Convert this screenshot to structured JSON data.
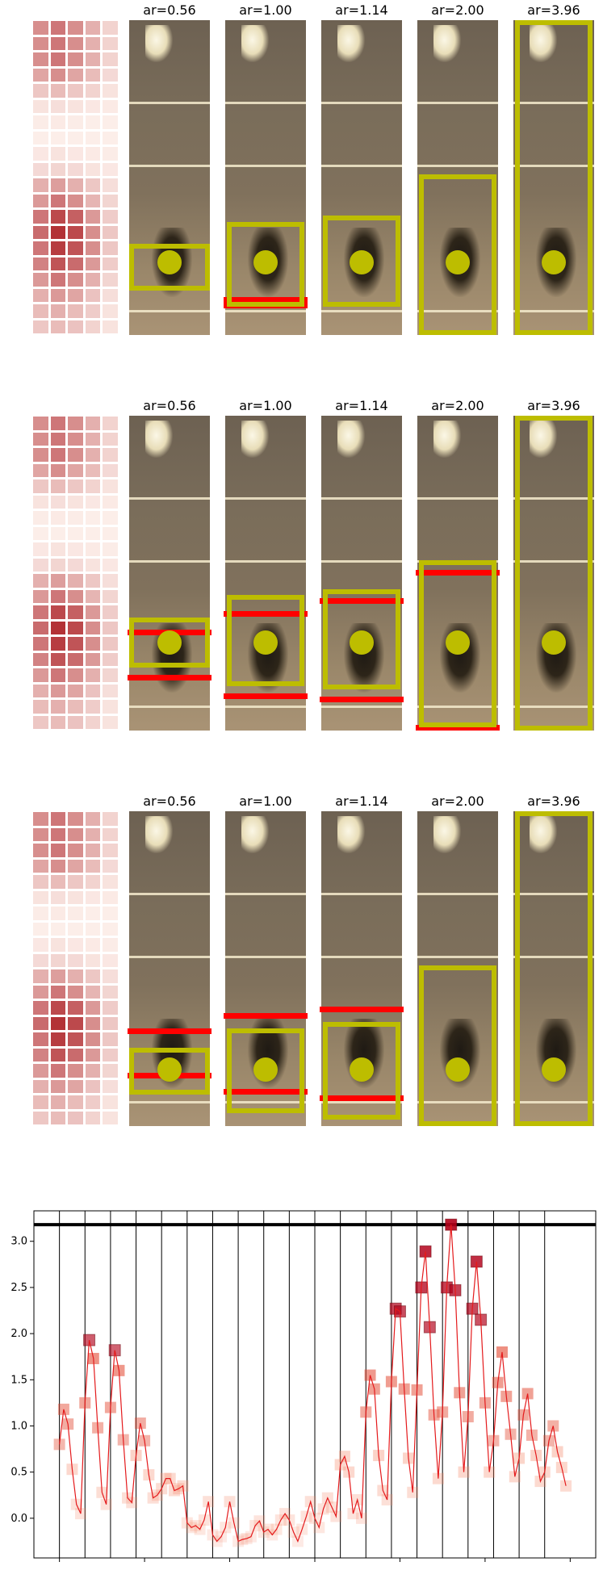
{
  "panels": [
    {
      "captions": [
        "ar=0.56",
        "ar=1.00",
        "ar=1.14",
        "ar=2.00",
        "ar=3.96"
      ],
      "heat": [
        [
          0.45,
          0.55,
          0.45,
          0.3,
          0.15
        ],
        [
          0.45,
          0.55,
          0.45,
          0.3,
          0.15
        ],
        [
          0.45,
          0.55,
          0.45,
          0.3,
          0.15
        ],
        [
          0.35,
          0.45,
          0.35,
          0.25,
          0.12
        ],
        [
          0.2,
          0.25,
          0.2,
          0.15,
          0.08
        ],
        [
          0.08,
          0.1,
          0.08,
          0.06,
          0.05
        ],
        [
          0.04,
          0.05,
          0.04,
          0.03,
          0.03
        ],
        [
          0.03,
          0.03,
          0.03,
          0.03,
          0.03
        ],
        [
          0.06,
          0.08,
          0.06,
          0.05,
          0.04
        ],
        [
          0.12,
          0.14,
          0.12,
          0.08,
          0.06
        ],
        [
          0.3,
          0.38,
          0.3,
          0.2,
          0.1
        ],
        [
          0.4,
          0.55,
          0.45,
          0.28,
          0.14
        ],
        [
          0.55,
          0.75,
          0.65,
          0.4,
          0.18
        ],
        [
          0.6,
          0.85,
          0.75,
          0.45,
          0.2
        ],
        [
          0.55,
          0.8,
          0.7,
          0.45,
          0.2
        ],
        [
          0.5,
          0.7,
          0.6,
          0.4,
          0.18
        ],
        [
          0.4,
          0.55,
          0.45,
          0.3,
          0.14
        ],
        [
          0.3,
          0.4,
          0.35,
          0.22,
          0.1
        ],
        [
          0.25,
          0.3,
          0.25,
          0.18,
          0.08
        ],
        [
          0.2,
          0.25,
          0.22,
          0.15,
          0.08
        ]
      ],
      "boxes": [
        {
          "yellow": [
            0,
            0.71,
            1,
            0.86
          ],
          "red": [],
          "dot": [
            0.5,
            0.77
          ]
        },
        {
          "yellow": [
            0.02,
            0.64,
            0.98,
            0.91
          ],
          "red": [
            0.88,
            0.9
          ],
          "dot": [
            0.5,
            0.77
          ]
        },
        {
          "yellow": [
            0.02,
            0.62,
            0.98,
            0.91
          ],
          "red": [],
          "dot": [
            0.5,
            0.77
          ]
        },
        {
          "yellow": [
            0.02,
            0.49,
            0.98,
            1.0
          ],
          "red": [],
          "dot": [
            0.5,
            0.77
          ]
        },
        {
          "yellow": [
            0.02,
            0.0,
            0.98,
            1.0
          ],
          "red": [],
          "dot": [
            0.5,
            0.77
          ]
        }
      ]
    },
    {
      "captions": [
        "ar=0.56",
        "ar=1.00",
        "ar=1.14",
        "ar=2.00",
        "ar=3.96"
      ],
      "heat": [
        [
          0.45,
          0.55,
          0.45,
          0.3,
          0.15
        ],
        [
          0.45,
          0.55,
          0.45,
          0.3,
          0.15
        ],
        [
          0.45,
          0.55,
          0.45,
          0.3,
          0.15
        ],
        [
          0.35,
          0.45,
          0.35,
          0.25,
          0.12
        ],
        [
          0.2,
          0.25,
          0.2,
          0.15,
          0.08
        ],
        [
          0.08,
          0.1,
          0.08,
          0.06,
          0.05
        ],
        [
          0.04,
          0.05,
          0.04,
          0.03,
          0.03
        ],
        [
          0.03,
          0.03,
          0.03,
          0.03,
          0.03
        ],
        [
          0.06,
          0.08,
          0.06,
          0.05,
          0.04
        ],
        [
          0.12,
          0.14,
          0.12,
          0.08,
          0.06
        ],
        [
          0.3,
          0.38,
          0.3,
          0.2,
          0.1
        ],
        [
          0.4,
          0.55,
          0.45,
          0.28,
          0.14
        ],
        [
          0.55,
          0.75,
          0.65,
          0.4,
          0.18
        ],
        [
          0.6,
          0.85,
          0.75,
          0.45,
          0.2
        ],
        [
          0.55,
          0.8,
          0.7,
          0.45,
          0.2
        ],
        [
          0.5,
          0.7,
          0.6,
          0.4,
          0.18
        ],
        [
          0.4,
          0.55,
          0.45,
          0.3,
          0.14
        ],
        [
          0.3,
          0.4,
          0.35,
          0.22,
          0.1
        ],
        [
          0.25,
          0.3,
          0.25,
          0.18,
          0.08
        ],
        [
          0.2,
          0.25,
          0.22,
          0.15,
          0.08
        ]
      ],
      "boxes": [
        {
          "yellow": [
            0,
            0.64,
            1,
            0.8
          ],
          "red": [
            0.68,
            0.84
          ],
          "dot": [
            0.5,
            0.72
          ]
        },
        {
          "yellow": [
            0.02,
            0.57,
            0.98,
            0.86
          ],
          "red": [
            0.62,
            0.9
          ],
          "dot": [
            0.5,
            0.72
          ]
        },
        {
          "yellow": [
            0.02,
            0.55,
            0.98,
            0.87
          ],
          "red": [
            0.58,
            0.91
          ],
          "dot": [
            0.5,
            0.72
          ]
        },
        {
          "yellow": [
            0.02,
            0.46,
            0.98,
            0.99
          ],
          "red": [
            0.49,
            1.0
          ],
          "dot": [
            0.5,
            0.72
          ]
        },
        {
          "yellow": [
            0.02,
            0.0,
            0.98,
            1.0
          ],
          "red": [],
          "dot": [
            0.5,
            0.72
          ]
        }
      ]
    },
    {
      "captions": [
        "ar=0.56",
        "ar=1.00",
        "ar=1.14",
        "ar=2.00",
        "ar=3.96"
      ],
      "heat": [
        [
          0.45,
          0.55,
          0.45,
          0.3,
          0.15
        ],
        [
          0.45,
          0.55,
          0.45,
          0.3,
          0.15
        ],
        [
          0.45,
          0.55,
          0.45,
          0.3,
          0.15
        ],
        [
          0.35,
          0.45,
          0.35,
          0.25,
          0.12
        ],
        [
          0.2,
          0.25,
          0.2,
          0.15,
          0.08
        ],
        [
          0.08,
          0.1,
          0.08,
          0.06,
          0.05
        ],
        [
          0.04,
          0.05,
          0.04,
          0.03,
          0.03
        ],
        [
          0.03,
          0.03,
          0.03,
          0.03,
          0.03
        ],
        [
          0.06,
          0.08,
          0.06,
          0.05,
          0.04
        ],
        [
          0.12,
          0.14,
          0.12,
          0.08,
          0.06
        ],
        [
          0.3,
          0.38,
          0.3,
          0.2,
          0.1
        ],
        [
          0.4,
          0.55,
          0.45,
          0.28,
          0.14
        ],
        [
          0.55,
          0.75,
          0.65,
          0.4,
          0.18
        ],
        [
          0.6,
          0.85,
          0.75,
          0.45,
          0.2
        ],
        [
          0.55,
          0.8,
          0.7,
          0.45,
          0.2
        ],
        [
          0.5,
          0.7,
          0.6,
          0.4,
          0.18
        ],
        [
          0.4,
          0.55,
          0.45,
          0.3,
          0.14
        ],
        [
          0.3,
          0.4,
          0.35,
          0.22,
          0.1
        ],
        [
          0.25,
          0.3,
          0.25,
          0.18,
          0.08
        ],
        [
          0.2,
          0.25,
          0.22,
          0.15,
          0.08
        ]
      ],
      "boxes": [
        {
          "yellow": [
            0,
            0.75,
            1,
            0.9
          ],
          "red": [
            0.69,
            0.85
          ],
          "dot": [
            0.5,
            0.82
          ]
        },
        {
          "yellow": [
            0.02,
            0.69,
            0.98,
            0.96
          ],
          "red": [
            0.64,
            0.9
          ],
          "dot": [
            0.5,
            0.82
          ]
        },
        {
          "yellow": [
            0.02,
            0.67,
            0.98,
            0.98
          ],
          "red": [
            0.62,
            0.92
          ],
          "dot": [
            0.5,
            0.82
          ]
        },
        {
          "yellow": [
            0.02,
            0.49,
            0.98,
            1.0
          ],
          "red": [],
          "dot": [
            0.5,
            0.82
          ]
        },
        {
          "yellow": [
            0.02,
            0.0,
            0.98,
            1.0
          ],
          "red": [],
          "dot": [
            0.5,
            0.82
          ]
        }
      ]
    }
  ],
  "chart_data": {
    "type": "line",
    "title": "",
    "xlabel": "",
    "ylabel": "",
    "xlim": [
      -6,
      126
    ],
    "ylim": [
      -0.43,
      3.33
    ],
    "xticks": [
      0,
      20,
      40,
      60,
      80,
      100,
      120
    ],
    "yticks": [
      0.0,
      0.5,
      1.0,
      1.5,
      2.0,
      2.5,
      3.0
    ],
    "hline": 3.18,
    "vlines": [
      0,
      6,
      12,
      18,
      24,
      30,
      36,
      42,
      48,
      54,
      60,
      66,
      72,
      78,
      84,
      90,
      96,
      102,
      108,
      114
    ],
    "series": [
      {
        "line_color": "#e41a1c",
        "x": [
          0,
          1,
          2,
          3,
          4,
          5,
          6,
          7,
          8,
          9,
          10,
          11,
          12,
          13,
          14,
          15,
          16,
          17,
          18,
          19,
          20,
          21,
          22,
          23,
          24,
          25,
          26,
          27,
          28,
          29,
          30,
          31,
          32,
          33,
          34,
          35,
          36,
          37,
          38,
          39,
          40,
          41,
          42,
          43,
          44,
          45,
          46,
          47,
          48,
          49,
          50,
          51,
          52,
          53,
          54,
          55,
          56,
          57,
          58,
          59,
          60,
          61,
          62,
          63,
          64,
          65,
          66,
          67,
          68,
          69,
          70,
          71,
          72,
          73,
          74,
          75,
          76,
          77,
          78,
          79,
          80,
          81,
          82,
          83,
          84,
          85,
          86,
          87,
          88,
          89,
          90,
          91,
          92,
          93,
          94,
          95,
          96,
          97,
          98,
          99,
          100,
          101,
          102,
          103,
          104,
          105,
          106,
          107,
          108,
          109,
          110,
          111,
          112,
          113,
          114,
          115,
          116,
          117,
          118,
          119
        ],
        "y": [
          0.8,
          1.18,
          1.02,
          0.53,
          0.15,
          0.05,
          1.25,
          1.93,
          1.73,
          0.98,
          0.28,
          0.15,
          1.2,
          1.82,
          1.6,
          0.85,
          0.22,
          0.17,
          0.68,
          1.03,
          0.84,
          0.47,
          0.22,
          0.25,
          0.32,
          0.43,
          0.43,
          0.3,
          0.32,
          0.35,
          -0.05,
          -0.1,
          -0.08,
          -0.12,
          -0.02,
          0.18,
          -0.18,
          -0.25,
          -0.2,
          -0.1,
          0.18,
          -0.05,
          -0.25,
          -0.23,
          -0.22,
          -0.2,
          -0.08,
          -0.03,
          -0.15,
          -0.12,
          -0.18,
          -0.12,
          -0.02,
          0.05,
          -0.02,
          -0.15,
          -0.25,
          -0.12,
          0.02,
          0.18,
          0.0,
          -0.1,
          0.1,
          0.22,
          0.12,
          0.02,
          0.58,
          0.67,
          0.5,
          0.05,
          0.2,
          0.0,
          1.15,
          1.55,
          1.4,
          0.68,
          0.3,
          0.2,
          1.48,
          2.27,
          2.24,
          1.4,
          0.65,
          0.28,
          1.39,
          2.5,
          2.89,
          2.07,
          1.12,
          0.43,
          1.15,
          2.5,
          3.18,
          2.47,
          1.36,
          0.5,
          1.1,
          2.27,
          2.78,
          2.15,
          1.25,
          0.5,
          0.84,
          1.47,
          1.8,
          1.32,
          0.91,
          0.45,
          0.65,
          1.12,
          1.35,
          0.9,
          0.68,
          0.4,
          0.5,
          0.84,
          1.0,
          0.72,
          0.55,
          0.35
        ]
      }
    ]
  }
}
